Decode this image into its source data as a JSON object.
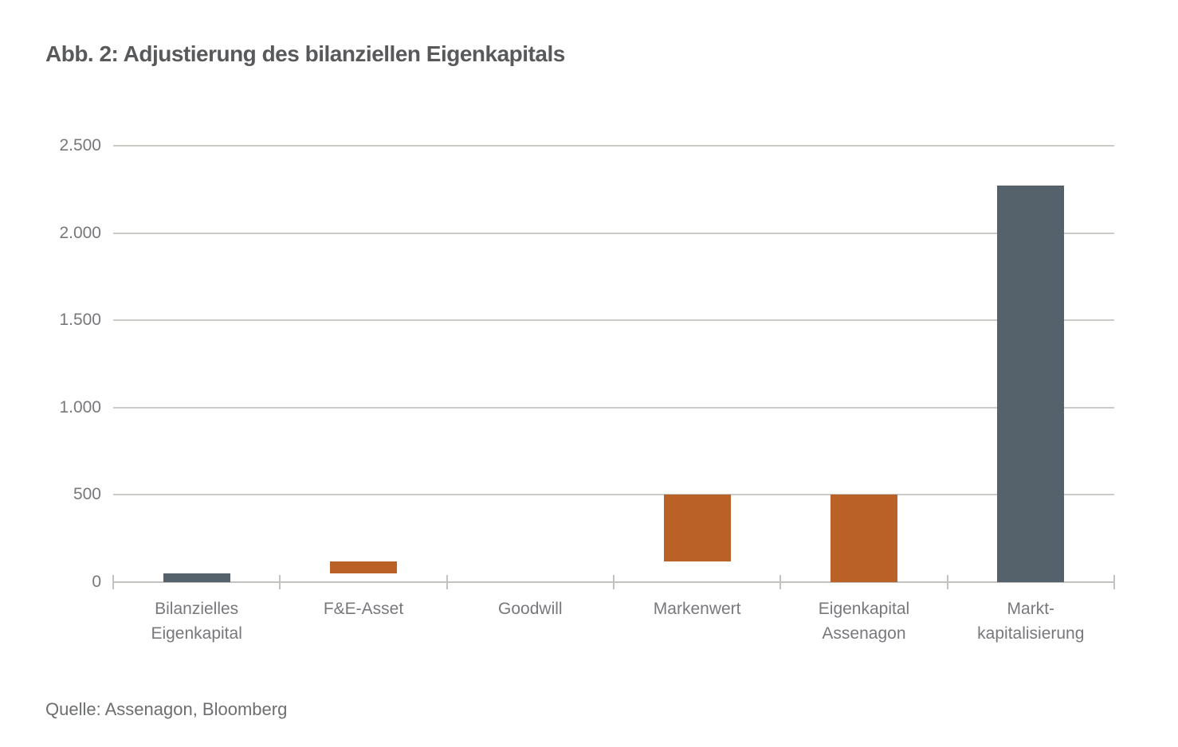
{
  "title": "Abb. 2: Adjustierung des bilanziellen Eigenkapitals",
  "source": "Quelle: Assenagon, Bloomberg",
  "colors": {
    "slate": "#55626C",
    "orange": "#BA6128",
    "grid": "#CBCBC8",
    "axis": "#C2C2BF",
    "label_text": "#77787B",
    "title_text": "#58595B",
    "source_text": "#6D6E70"
  },
  "chart_data": {
    "type": "bar",
    "subtype": "waterfall",
    "title": "Abb. 2: Adjustierung des bilanziellen Eigenkapitals",
    "source": "Quelle: Assenagon, Bloomberg",
    "xlabel": "",
    "ylabel": "",
    "ylim": [
      0,
      2500
    ],
    "grid": "horizontal-only",
    "legend": "none",
    "yticks": [
      {
        "value": 0,
        "label": "0"
      },
      {
        "value": 500,
        "label": "500"
      },
      {
        "value": 1000,
        "label": "1.000"
      },
      {
        "value": 1500,
        "label": "1.500"
      },
      {
        "value": 2000,
        "label": "2.000"
      },
      {
        "value": 2500,
        "label": "2.500"
      }
    ],
    "categories": [
      "Bilanzielles Eigenkapital",
      "F&E-Asset",
      "Goodwill",
      "Markenwert",
      "Eigenkapital Assenagon",
      "Markt-kapitalisierung"
    ],
    "bars": [
      {
        "label_lines": [
          "Bilanzielles",
          "Eigenkapital"
        ],
        "start": 0,
        "end": 50,
        "value": 50,
        "color": "slate"
      },
      {
        "label_lines": [
          "F&E-Asset"
        ],
        "start": 50,
        "end": 120,
        "value": 70,
        "color": "orange"
      },
      {
        "label_lines": [
          "Goodwill"
        ],
        "start": 120,
        "end": 120,
        "value": 0,
        "color": "orange"
      },
      {
        "label_lines": [
          "Markenwert"
        ],
        "start": 120,
        "end": 500,
        "value": 380,
        "color": "orange"
      },
      {
        "label_lines": [
          "Eigenkapital",
          "Assenagon"
        ],
        "start": 0,
        "end": 500,
        "value": 500,
        "color": "orange"
      },
      {
        "label_lines": [
          "Markt-",
          "kapitalisierung"
        ],
        "start": 0,
        "end": 2270,
        "value": 2270,
        "color": "slate"
      }
    ]
  }
}
